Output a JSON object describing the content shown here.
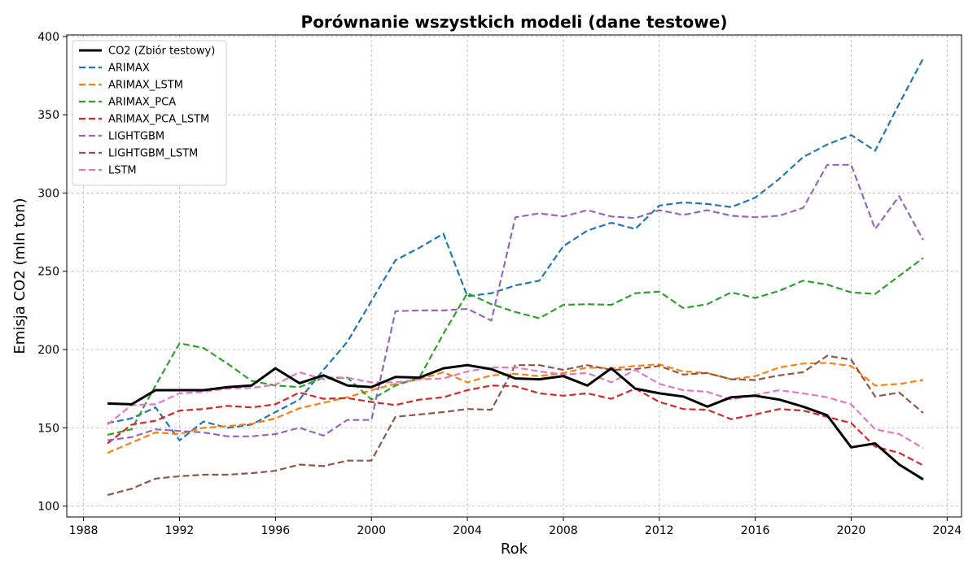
{
  "chart_data": {
    "type": "line",
    "title": "Porównanie wszystkich modeli (dane testowe)",
    "xlabel": "Rok",
    "ylabel": "Emisja CO2 (mln ton)",
    "xlim": [
      1987.3,
      1988.0
    ],
    "ylim": [
      93,
      401
    ],
    "x_ticks": [
      1988,
      1992,
      1996,
      2000,
      2004,
      2008,
      2012,
      2016,
      2020,
      2024
    ],
    "y_ticks": [
      100,
      150,
      200,
      250,
      300,
      350,
      400
    ],
    "grid": true,
    "legend_position": "top-left",
    "x": [
      1989,
      1990,
      1991,
      1992,
      1993,
      1994,
      1995,
      1996,
      1997,
      1998,
      1999,
      2000,
      2001,
      2002,
      2003,
      2004,
      2005,
      2006,
      2007,
      2008,
      2009,
      2010,
      2011,
      2012,
      2013,
      2014,
      2015,
      2016,
      2017,
      2018,
      2019,
      2020,
      2021,
      2022,
      2023
    ],
    "series": [
      {
        "name": "CO2 (Zbiór testowy)",
        "color": "#000000",
        "style": "solid",
        "values": [
          165.5,
          165,
          174,
          174,
          174,
          176,
          177,
          188,
          178.5,
          183.5,
          177,
          176,
          182.5,
          182,
          188,
          190,
          187.5,
          181.5,
          181,
          183,
          177,
          188,
          175,
          172,
          170,
          163.5,
          169.5,
          170.5,
          168,
          163.5,
          158,
          137.5,
          140,
          126.5,
          117
        ]
      },
      {
        "name": "ARIMAX",
        "color": "#1f77b4",
        "style": "dashed",
        "values": [
          153,
          156,
          163,
          142,
          154,
          150,
          152,
          160,
          168,
          187,
          205,
          231,
          257,
          265,
          274,
          234,
          236,
          241,
          244,
          266,
          276,
          281,
          277,
          292,
          294,
          293,
          291,
          297,
          309,
          323,
          331,
          337,
          327,
          357,
          386
        ]
      },
      {
        "name": "ARIMAX_LSTM",
        "color": "#ff7f0e",
        "style": "dashed",
        "values": [
          134,
          140.5,
          147,
          146,
          150,
          151,
          152.5,
          156,
          162.5,
          166,
          169.5,
          174,
          178,
          181,
          185.5,
          179,
          183.5,
          184.5,
          183,
          185,
          188.5,
          188,
          189.5,
          190.5,
          186,
          185,
          181,
          183,
          188.5,
          191,
          191.5,
          189.5,
          177,
          178,
          180.5
        ]
      },
      {
        "name": "ARIMAX_PCA",
        "color": "#2ca02c",
        "style": "dashed",
        "values": [
          145.5,
          149,
          177,
          204,
          201,
          191,
          180,
          177,
          176,
          182,
          182,
          168,
          177,
          182,
          210,
          236,
          229,
          224,
          220,
          228.5,
          229,
          228.5,
          236,
          237,
          226.5,
          229,
          236.5,
          233,
          237.5,
          244,
          241.5,
          236.5,
          235.5,
          247,
          258.5
        ]
      },
      {
        "name": "ARIMAX_PCA_LSTM",
        "color": "#d62728",
        "style": "dashed",
        "values": [
          140,
          152,
          154.5,
          161,
          162,
          164,
          163,
          165,
          172.5,
          168.5,
          169,
          166.5,
          164.5,
          168,
          169.5,
          174,
          177,
          176.5,
          172,
          170.5,
          172,
          168.5,
          175,
          166.5,
          162,
          161.5,
          155.5,
          158.5,
          162,
          161,
          157,
          153,
          138,
          134,
          126
        ]
      },
      {
        "name": "LIGHTGBM",
        "color": "#9467bd",
        "style": "dashed",
        "values": [
          142,
          144,
          149,
          148,
          147,
          144.5,
          144.5,
          146,
          150,
          145,
          155,
          155,
          224.5,
          225,
          225,
          226,
          218.5,
          284.5,
          287,
          285,
          289,
          285,
          284,
          289,
          286,
          289,
          285.5,
          284.5,
          285.5,
          290.5,
          318,
          318,
          277,
          298,
          270
        ]
      },
      {
        "name": "LIGHTGBM_LSTM",
        "color": "#8c564b",
        "style": "dashed",
        "values": [
          107,
          111,
          117.5,
          119,
          120,
          120,
          121,
          122.5,
          126.5,
          125.5,
          129,
          129,
          157,
          158.5,
          160,
          162,
          161.5,
          190,
          190,
          187,
          190,
          187,
          187.5,
          189.5,
          184,
          185,
          181,
          180.5,
          183.5,
          185.5,
          196,
          193.5,
          170,
          172.5,
          159.5
        ]
      },
      {
        "name": "LSTM",
        "color": "#e377c2",
        "style": "dashed",
        "values": [
          152,
          164.5,
          165,
          172,
          173,
          175,
          175.5,
          177.5,
          185.5,
          181,
          182,
          179,
          179,
          181,
          181.5,
          186,
          188.5,
          188.5,
          186,
          184,
          185,
          179,
          187,
          178,
          174,
          173,
          168,
          171,
          174,
          172,
          169.5,
          165,
          149,
          146,
          137
        ]
      }
    ]
  }
}
